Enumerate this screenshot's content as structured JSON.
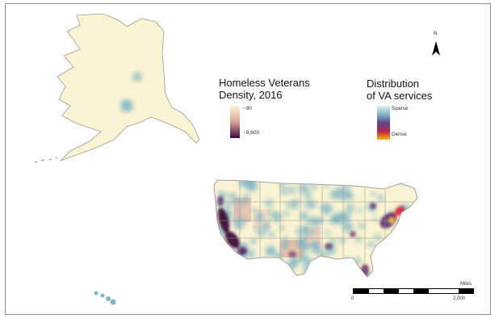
{
  "legend_density": {
    "title_line1": "Homeless Veterans",
    "title_line2": "Density, 2016",
    "low_label": "~90",
    "high_label": "~9,600",
    "low_color": "#fbf4d2",
    "mid_color": "#d9a39a",
    "high_color": "#3e0a3c"
  },
  "legend_services": {
    "title_line1": "Distribution",
    "title_line2": "of VA services",
    "low_label": "Sparse",
    "high_label": "Dense",
    "colors": [
      "#e3f1f4",
      "#7fb7c6",
      "#5b4a8a",
      "#b8224a",
      "#f5b800"
    ]
  },
  "north_arrow": {
    "label": "N"
  },
  "scale_bar": {
    "unit": "Miles",
    "min_label": "0",
    "max_label": "2,000"
  },
  "map_colors": {
    "ocean": "#ffffff",
    "land_base": "#fbf4d2",
    "service_dot": "#7fb7c6",
    "hotspot_purple": "#5b2668",
    "hotspot_dark": "#3e0a3c",
    "hotspot_red": "#d7263d",
    "hotspot_yellow": "#f5c400"
  }
}
